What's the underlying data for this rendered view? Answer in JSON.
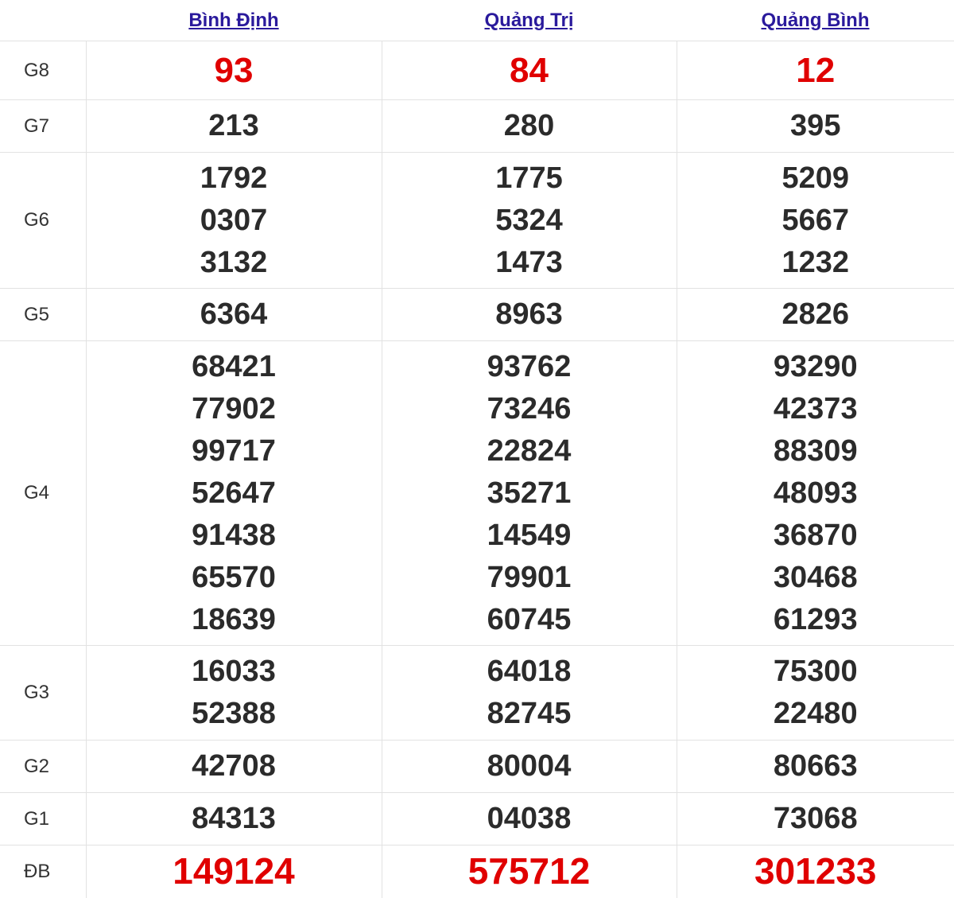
{
  "provinces": [
    "Bình Định",
    "Quảng Trị",
    "Quảng Bình"
  ],
  "accent_color": "#e00000",
  "rows": [
    {
      "label": "G8",
      "values": [
        [
          "93"
        ],
        [
          "84"
        ],
        [
          "12"
        ]
      ],
      "highlight": true
    },
    {
      "label": "G7",
      "values": [
        [
          "213"
        ],
        [
          "280"
        ],
        [
          "395"
        ]
      ]
    },
    {
      "label": "G6",
      "values": [
        [
          "1792",
          "0307",
          "3132"
        ],
        [
          "1775",
          "5324",
          "1473"
        ],
        [
          "5209",
          "5667",
          "1232"
        ]
      ]
    },
    {
      "label": "G5",
      "values": [
        [
          "6364"
        ],
        [
          "8963"
        ],
        [
          "2826"
        ]
      ]
    },
    {
      "label": "G4",
      "values": [
        [
          "68421",
          "77902",
          "99717",
          "52647",
          "91438",
          "65570",
          "18639"
        ],
        [
          "93762",
          "73246",
          "22824",
          "35271",
          "14549",
          "79901",
          "60745"
        ],
        [
          "93290",
          "42373",
          "88309",
          "48093",
          "36870",
          "30468",
          "61293"
        ]
      ]
    },
    {
      "label": "G3",
      "values": [
        [
          "16033",
          "52388"
        ],
        [
          "64018",
          "82745"
        ],
        [
          "75300",
          "22480"
        ]
      ]
    },
    {
      "label": "G2",
      "values": [
        [
          "42708"
        ],
        [
          "80004"
        ],
        [
          "80663"
        ]
      ]
    },
    {
      "label": "G1",
      "values": [
        [
          "84313"
        ],
        [
          "04038"
        ],
        [
          "73068"
        ]
      ]
    },
    {
      "label": "ĐB",
      "values": [
        [
          "149124"
        ],
        [
          "575712"
        ],
        [
          "301233"
        ]
      ],
      "special": true
    }
  ]
}
